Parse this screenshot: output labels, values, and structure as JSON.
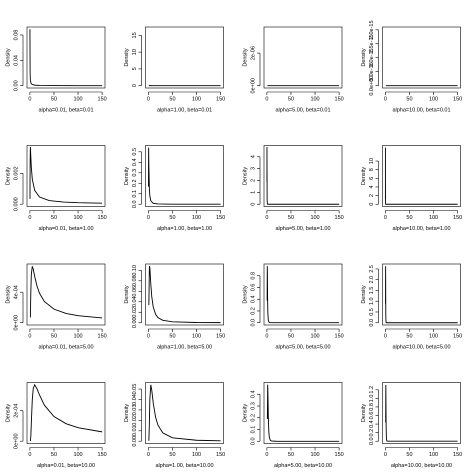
{
  "chart_data": [
    {
      "type": "line",
      "xlabel": "alpha=0.01, beta=0.01",
      "ylabel": "Density",
      "color": "#000000",
      "xlim": [
        -6,
        156
      ],
      "xticks": [
        0,
        50,
        100,
        150
      ],
      "ylim": [
        -0.0036,
        0.0926
      ],
      "yticks": [
        {
          "value": 0,
          "label": "0.00"
        },
        0.04,
        0.08
      ],
      "x": [
        0.1,
        0.5,
        1,
        2,
        3,
        5,
        10,
        20,
        50,
        100,
        150
      ],
      "values": [
        0.089,
        0.0188,
        0.0095,
        0.0048,
        0.0032,
        0.0019,
        0.00094,
        0.00047,
        0.00019,
        9.5e-05,
        6.1e-05
      ]
    },
    {
      "type": "line",
      "xlabel": "alpha=1.00, beta=0.01",
      "ylabel": "Density",
      "color": "#000000",
      "xlim": [
        -6,
        156
      ],
      "xticks": [
        0,
        50,
        100,
        150
      ],
      "ylim": [
        -0.7,
        17.5
      ],
      "yticks": [
        0,
        5,
        10,
        15
      ],
      "x": [
        1,
        10,
        150
      ],
      "values": [
        0.0099,
        0.0001,
        4e-07
      ]
    },
    {
      "type": "line",
      "xlabel": "alpha=5.00, beta=0.01",
      "ylabel": "Density",
      "color": "#000000",
      "xlim": [
        -6,
        156
      ],
      "xticks": [
        0,
        50,
        100,
        150
      ],
      "ylim": [
        -1.4e-07,
        3.6e-06
      ],
      "yticks": [
        {
          "value": 0,
          "label": "0e+00"
        },
        {
          "value": 2e-06,
          "label": "2e-06"
        }
      ],
      "x": [
        1,
        10,
        150
      ],
      "values": [
        4.1e-12,
        4.2e-18,
        3.7e-25
      ]
    },
    {
      "type": "line",
      "xlabel": "alpha=10.00, beta=0.01",
      "ylabel": "Density",
      "color": "#000000",
      "xlim": [
        -6,
        156
      ],
      "xticks": [
        0,
        50,
        100,
        150
      ],
      "ylim": [
        -8.4e-17,
        2.1e-15
      ],
      "yticks": [
        {
          "value": 0,
          "label": "0.0e+00"
        },
        {
          "value": 5e-16,
          "label": "5.0e-16"
        },
        {
          "value": 1e-15,
          "label": "1.0e-15"
        },
        {
          "value": 1.5e-15,
          "label": "1.5e-15"
        },
        {
          "value": 2e-15,
          "label": "2.0e-15"
        }
      ],
      "x": [
        1,
        10,
        150
      ],
      "values": [
        2.76e-26,
        2.8e-37,
        3.2e-50
      ]
    },
    {
      "type": "line",
      "xlabel": "alpha=0.01, beta=1.00",
      "ylabel": "Density",
      "color": "#000000",
      "xlim": [
        -6,
        156
      ],
      "xticks": [
        0,
        50,
        100,
        150
      ],
      "ylim": [
        -0.00015,
        0.0038
      ],
      "yticks": [
        {
          "value": 0,
          "label": "0.000"
        },
        0.002
      ],
      "x": [
        0.2,
        0.5,
        1,
        2,
        3,
        5,
        10,
        20,
        40,
        70,
        100,
        150
      ],
      "values": [
        0.00034,
        0.00274,
        0.0037,
        0.00303,
        0.00238,
        0.00162,
        0.00089,
        0.000464,
        0.000236,
        0.000136,
        9.5e-05,
        6.35e-05
      ]
    },
    {
      "type": "line",
      "xlabel": "alpha=1.00, beta=1.00",
      "ylabel": "Density",
      "color": "#000000",
      "xlim": [
        -6,
        156
      ],
      "xticks": [
        0,
        50,
        100,
        150
      ],
      "ylim": [
        -0.0216,
        0.56
      ],
      "yticks": [
        {
          "value": 0,
          "label": "0.0"
        },
        0.1,
        0.2,
        0.3,
        0.4,
        0.5
      ],
      "x": [
        0.2,
        0.5,
        1,
        2,
        3,
        5,
        10,
        20,
        50,
        150
      ],
      "values": [
        0.168,
        0.54,
        0.368,
        0.152,
        0.0796,
        0.0327,
        0.009,
        0.0024,
        0.00039,
        4.4e-05
      ]
    },
    {
      "type": "line",
      "xlabel": "alpha=5.00, beta=1.00",
      "ylabel": "Density",
      "color": "#000000",
      "xlim": [
        -6,
        156
      ],
      "xticks": [
        0,
        50,
        100,
        150
      ],
      "ylim": [
        -0.19,
        4.95
      ],
      "yticks": [
        0,
        1,
        2,
        3,
        4
      ],
      "x": [
        0.1,
        0.167,
        0.25,
        0.5,
        1,
        2,
        150
      ],
      "values": [
        1.89,
        4.82,
        3.13,
        0.36,
        0.0153,
        0.0004,
        0
      ]
    },
    {
      "type": "line",
      "xlabel": "alpha=10.00, beta=1.00",
      "ylabel": "Density",
      "color": "#000000",
      "xlim": [
        -6,
        156
      ],
      "xticks": [
        0,
        50,
        100,
        150
      ],
      "ylim": [
        -0.52,
        13.6
      ],
      "yticks": [
        0,
        2,
        4,
        6,
        8,
        10
      ],
      "x": [
        0.05,
        0.091,
        0.15,
        0.3,
        1,
        150
      ],
      "values": [
        1.16,
        13.1,
        4.06,
        0.0557,
        1e-07,
        0
      ]
    },
    {
      "type": "line",
      "xlabel": "alpha=0.01, beta=5.00",
      "ylabel": "Density",
      "color": "#000000",
      "xlim": [
        -6,
        156
      ],
      "xticks": [
        0,
        50,
        100,
        150
      ],
      "ylim": [
        -3e-05,
        0.00077
      ],
      "yticks": [
        {
          "value": 0,
          "label": "0e+00"
        },
        {
          "value": 0.0004,
          "label": "4e-04"
        }
      ],
      "x": [
        1,
        2,
        3,
        5,
        7,
        10,
        15,
        20,
        30,
        50,
        75,
        100,
        150
      ],
      "values": [
        6.9e-05,
        0.000417,
        0.000637,
        0.00074,
        0.000703,
        0.000606,
        0.000475,
        0.000386,
        0.000279,
        0.000178,
        0.000122,
        9.28e-05,
        6.29e-05
      ]
    },
    {
      "type": "line",
      "xlabel": "alpha=1.00, beta=5.00",
      "ylabel": "Density",
      "color": "#000000",
      "xlim": [
        -6,
        156
      ],
      "xticks": [
        0,
        50,
        100,
        150
      ],
      "ylim": [
        -0.0043,
        0.112
      ],
      "yticks": [
        {
          "value": 0,
          "label": "0.00"
        },
        0.02,
        0.04,
        0.06,
        0.08,
        {
          "value": 0.1,
          "label": "0.10"
        }
      ],
      "x": [
        1,
        2,
        2.5,
        3,
        5,
        7,
        10,
        15,
        20,
        30,
        50,
        100,
        150
      ],
      "values": [
        0.0337,
        0.1026,
        0.108,
        0.105,
        0.0736,
        0.05,
        0.0303,
        0.0159,
        0.00974,
        0.0047,
        0.00181,
        0.000476,
        0.000215
      ]
    },
    {
      "type": "line",
      "xlabel": "alpha=5.00, beta=5.00",
      "ylabel": "Density",
      "color": "#000000",
      "xlim": [
        -6,
        156
      ],
      "xticks": [
        0,
        50,
        100,
        150
      ],
      "ylim": [
        -0.039,
        1.0
      ],
      "yticks": [
        {
          "value": 0,
          "label": "0.0"
        },
        0.2,
        0.4,
        0.6,
        0.8
      ],
      "x": [
        0.5,
        0.833,
        1,
        1.5,
        2,
        3,
        5,
        10,
        150
      ],
      "values": [
        0.378,
        0.964,
        0.877,
        0.408,
        0.167,
        0.0337,
        0.00307,
        7.9e-05,
        0
      ]
    },
    {
      "type": "line",
      "xlabel": "alpha=10.00, beta=5.00",
      "ylabel": "Density",
      "color": "#000000",
      "xlim": [
        -6,
        156
      ],
      "xticks": [
        0,
        50,
        100,
        150
      ],
      "ylim": [
        -0.105,
        2.73
      ],
      "yticks": [
        {
          "value": 0,
          "label": "0.0"
        },
        0.5,
        {
          "value": 1,
          "label": "1.0"
        },
        1.5,
        {
          "value": 2,
          "label": "2.0"
        },
        2.5
      ],
      "x": [
        0.3,
        0.4545,
        0.6,
        0.8,
        1,
        1.5,
        3,
        150
      ],
      "values": [
        0.884,
        2.626,
        1.78,
        0.605,
        0.181,
        0.0111,
        0,
        0
      ]
    },
    {
      "type": "line",
      "xlabel": "alpha=0.01, beta=10.00",
      "ylabel": "Density",
      "color": "#000000",
      "xlim": [
        -6,
        156
      ],
      "xticks": [
        0,
        50,
        100,
        150
      ],
      "ylim": [
        -1.5e-05,
        0.000385
      ],
      "yticks": [
        {
          "value": 0,
          "label": "0e+00"
        },
        {
          "value": 0.0002,
          "label": "2e-04"
        }
      ],
      "x": [
        1,
        2,
        3,
        5,
        7,
        10,
        15,
        20,
        30,
        50,
        75,
        100,
        150
      ],
      "values": [
        4.7e-07,
        3.44e-05,
        0.000121,
        0.000274,
        0.000347,
        0.00037,
        0.000342,
        0.000303,
        0.000237,
        0.000162,
        0.000115,
        8.89e-05,
        6.12e-05
      ]
    },
    {
      "type": "line",
      "xlabel": "alpha=1.00, beta=10.00",
      "ylabel": "Density",
      "color": "#000000",
      "xlim": [
        -6,
        156
      ],
      "xticks": [
        0,
        50,
        100,
        150
      ],
      "ylim": [
        -0.0022,
        0.0563
      ],
      "yticks": [
        {
          "value": 0,
          "label": "0.00"
        },
        0.01,
        0.02,
        0.03,
        0.04,
        0.05
      ],
      "x": [
        1,
        2,
        3,
        5,
        7,
        10,
        15,
        20,
        30,
        50,
        100,
        150
      ],
      "values": [
        0.00045,
        0.0168,
        0.0397,
        0.0541,
        0.0489,
        0.0368,
        0.0228,
        0.0152,
        0.00796,
        0.00327,
        0.000905,
        0.000416
      ]
    },
    {
      "type": "line",
      "xlabel": "alpha=5.00, beta=10.00",
      "ylabel": "Density",
      "color": "#000000",
      "xlim": [
        -6,
        156
      ],
      "xticks": [
        0,
        50,
        100,
        150
      ],
      "ylim": [
        -0.019,
        0.5
      ],
      "yticks": [
        {
          "value": 0,
          "label": "0.0"
        },
        0.1,
        0.2,
        0.3,
        0.4
      ],
      "x": [
        1,
        1.667,
        2,
        3,
        4,
        5,
        7,
        10,
        20,
        150
      ],
      "values": [
        0.189,
        0.482,
        0.439,
        0.204,
        0.0835,
        0.036,
        0.0085,
        0.00153,
        1.6e-05,
        0
      ]
    },
    {
      "type": "line",
      "xlabel": "alpha=10.00, beta=10.00",
      "ylabel": "Density",
      "color": "#000000",
      "xlim": [
        -6,
        156
      ],
      "xticks": [
        0,
        50,
        100,
        150
      ],
      "ylim": [
        -0.053,
        1.37
      ],
      "yticks": [
        {
          "value": 0,
          "label": "0.0"
        },
        0.2,
        0.4,
        0.6,
        0.8,
        {
          "value": 1,
          "label": "1.0"
        },
        1.2
      ],
      "x": [
        0.6,
        0.909,
        1.2,
        1.5,
        2,
        3,
        5,
        150
      ],
      "values": [
        0.44,
        1.313,
        0.89,
        0.405,
        0.0906,
        0.00556,
        0,
        0
      ]
    }
  ]
}
